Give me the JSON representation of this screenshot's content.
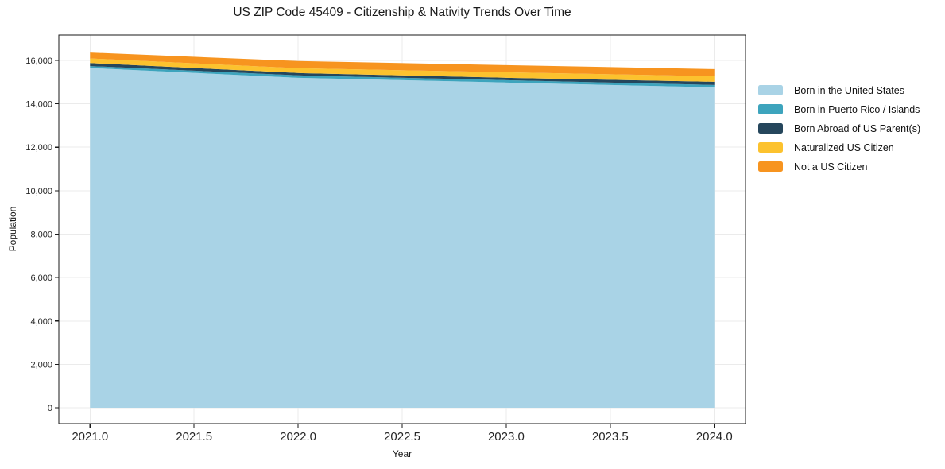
{
  "chart_data": {
    "type": "area",
    "stacked": true,
    "title": "US ZIP Code 45409 - Citizenship & Nativity Trends Over Time",
    "xlabel": "Year",
    "ylabel": "Population",
    "x": [
      2021,
      2022,
      2023,
      2024
    ],
    "series": [
      {
        "name": "Born in the United States",
        "color": "#a9d3e6",
        "values": [
          15650,
          15200,
          14980,
          14760
        ]
      },
      {
        "name": "Born in Puerto Rico / Islands",
        "color": "#3da4bd",
        "values": [
          90,
          110,
          110,
          110
        ]
      },
      {
        "name": "Born Abroad of US Parent(s)",
        "color": "#25465c",
        "values": [
          140,
          110,
          110,
          145
        ]
      },
      {
        "name": "Naturalized US Citizen",
        "color": "#fcc22e",
        "values": [
          210,
          220,
          255,
          255
        ]
      },
      {
        "name": "Not a US Citizen",
        "color": "#f7941f",
        "values": [
          270,
          330,
          330,
          330
        ]
      }
    ],
    "totals": [
      16360,
      15970,
      15785,
      15600
    ],
    "xlim": [
      2020.85,
      2024.15
    ],
    "ylim": [
      -730,
      17170
    ],
    "xticks": {
      "values": [
        2021,
        2021.5,
        2022,
        2022.5,
        2023,
        2023.5,
        2024
      ],
      "labels": [
        "2021.0",
        "2021.5",
        "2022.0",
        "2022.5",
        "2023.0",
        "2023.5",
        "2024.0"
      ]
    },
    "yticks": {
      "values": [
        0,
        2000,
        4000,
        6000,
        8000,
        10000,
        12000,
        14000,
        16000
      ],
      "labels": [
        "0",
        "2,000",
        "4,000",
        "6,000",
        "8,000",
        "10,000",
        "12,000",
        "14,000",
        "16,000"
      ]
    },
    "grid": true,
    "legend_position": "right-outside",
    "style": {
      "background": "#ffffff",
      "grid_color": "#ebebeb",
      "axis_color": "#1a1a1a",
      "tick_label_color": "#262626"
    }
  }
}
